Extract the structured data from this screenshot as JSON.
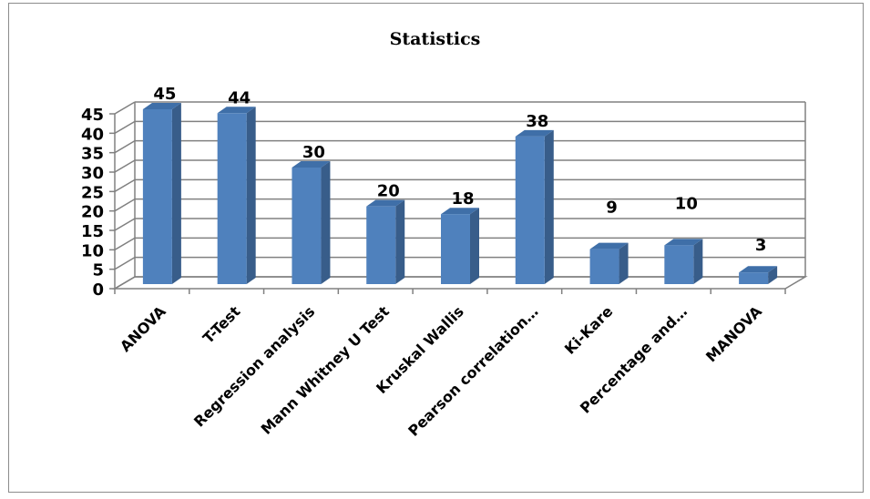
{
  "chart_data": {
    "type": "bar",
    "title": "Statistics",
    "categories": [
      "ANOVA",
      "T-Test",
      "Regression analysis",
      "Mann Whitney U Test",
      "Kruskal Wallis",
      "Pearson correlation…",
      "Ki-Kare",
      "Percentage and…",
      "MANOVA"
    ],
    "values": [
      45,
      44,
      30,
      20,
      18,
      38,
      9,
      10,
      3
    ],
    "ylim": [
      0,
      45
    ],
    "yticks": [
      "0",
      "5",
      "10",
      "15",
      "20",
      "25",
      "30",
      "35",
      "40",
      "45"
    ],
    "grid": true,
    "legend": "none",
    "bar_color": "#4f81bd"
  }
}
